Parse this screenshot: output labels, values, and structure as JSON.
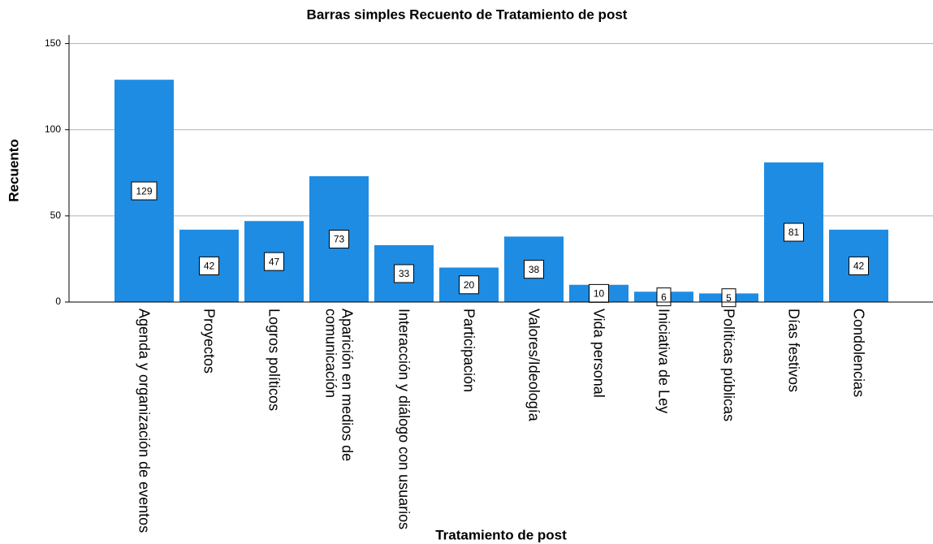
{
  "chart_data": {
    "type": "bar",
    "title": "Barras simples Recuento de Tratamiento de post",
    "x_label": "Tratamiento de post",
    "y_label": "Recuento",
    "categories": [
      "Agenda y organización de eventos",
      "Proyectos",
      "Logros políticos",
      "Aparición en medios de comunicación",
      "Interacción y diálogo con usuarios",
      "Participación",
      "Valores/Ideología",
      "Vida personal",
      "Iniciativa de Ley",
      "Políticas públicas",
      "Días festivos",
      "Condolencias"
    ],
    "values": [
      129,
      42,
      47,
      73,
      33,
      20,
      38,
      10,
      6,
      5,
      81,
      42
    ],
    "color": "#1e8ce3",
    "ylim": [
      0,
      155
    ],
    "yticks": [
      0,
      50,
      100,
      150
    ],
    "grid": true
  }
}
